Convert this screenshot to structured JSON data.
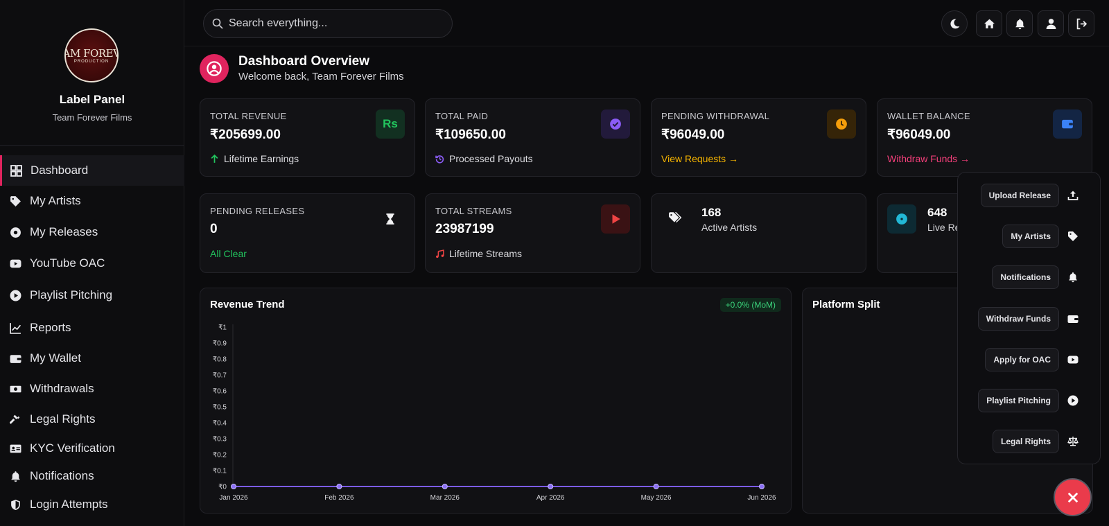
{
  "sidebar": {
    "logo_text": "AM FOREV",
    "logo_sub": "PRODUCTION",
    "panel_title": "Label Panel",
    "panel_subtitle": "Team Forever Films",
    "items": [
      {
        "label": "Dashboard",
        "icon": "grid-icon",
        "active": true
      },
      {
        "label": "My Artists",
        "icon": "tag-icon"
      },
      {
        "label": "My Releases",
        "icon": "disc-icon"
      },
      {
        "label": "YouTube OAC",
        "icon": "youtube-icon"
      },
      {
        "label": "Playlist Pitching",
        "icon": "play-circle-icon"
      },
      {
        "label": "Reports",
        "icon": "line-chart-icon"
      },
      {
        "label": "My Wallet",
        "icon": "wallet-icon"
      },
      {
        "label": "Withdrawals",
        "icon": "money-icon"
      },
      {
        "label": "Legal Rights",
        "icon": "gavel-icon"
      },
      {
        "label": "KYC Verification",
        "icon": "id-card-icon"
      },
      {
        "label": "Notifications",
        "icon": "bell-icon"
      },
      {
        "label": "Login Attempts",
        "icon": "shield-icon"
      }
    ]
  },
  "search": {
    "placeholder": "Search everything..."
  },
  "header": {
    "title": "Dashboard Overview",
    "subtitle": "Welcome back, Team Forever Films"
  },
  "stats": [
    {
      "label": "TOTAL REVENUE",
      "value": "₹205699.00",
      "foot": "Lifetime Earnings",
      "badge": "Rs",
      "accent": "#22c55e"
    },
    {
      "label": "TOTAL PAID",
      "value": "₹109650.00",
      "foot": "Processed Payouts",
      "accent": "#8b5cf6"
    },
    {
      "label": "PENDING WITHDRAWAL",
      "value": "₹96049.00",
      "foot": "View Requests →",
      "accent": "#f59e0b"
    },
    {
      "label": "WALLET BALANCE",
      "value": "₹96049.00",
      "foot": "Withdraw Funds →",
      "accent": "#3b82f6",
      "foot_color": "#f43f7a"
    },
    {
      "label": "PENDING RELEASES",
      "value": "0",
      "foot": "All Clear",
      "accent": "#22c55e"
    },
    {
      "label": "TOTAL STREAMS",
      "value": "23987199",
      "foot": "Lifetime Streams",
      "accent": "#ef4444"
    }
  ],
  "mini": [
    {
      "value": "168",
      "label": "Active Artists"
    },
    {
      "value": "648",
      "label": "Live Re"
    }
  ],
  "revenue_panel": {
    "title": "Revenue Trend",
    "mom": "+0.0% (MoM)"
  },
  "platform_panel": {
    "title": "Platform Split"
  },
  "quick_actions": [
    {
      "label": "Upload Release",
      "icon": "upload-icon"
    },
    {
      "label": "My Artists",
      "icon": "tag-icon"
    },
    {
      "label": "Notifications",
      "icon": "bell-icon"
    },
    {
      "label": "Withdraw Funds",
      "icon": "wallet-icon"
    },
    {
      "label": "Apply for OAC",
      "icon": "youtube-icon"
    },
    {
      "label": "Playlist Pitching",
      "icon": "play-circle-icon"
    },
    {
      "label": "Legal Rights",
      "icon": "scale-icon"
    }
  ],
  "chart_data": {
    "type": "line",
    "title": "Revenue Trend",
    "categories": [
      "Jan 2026",
      "Feb 2026",
      "Mar 2026",
      "Apr 2026",
      "May 2026",
      "Jun 2026"
    ],
    "series": [
      {
        "values": [
          0,
          0,
          0,
          0,
          0,
          0
        ]
      }
    ],
    "y_ticks": [
      "₹0",
      "₹0.1",
      "₹0.2",
      "₹0.3",
      "₹0.4",
      "₹0.5",
      "₹0.6",
      "₹0.7",
      "₹0.8",
      "₹0.9",
      "₹1"
    ],
    "ylim": [
      0,
      1
    ],
    "line_color": "#7c5cf0",
    "grid": false
  }
}
